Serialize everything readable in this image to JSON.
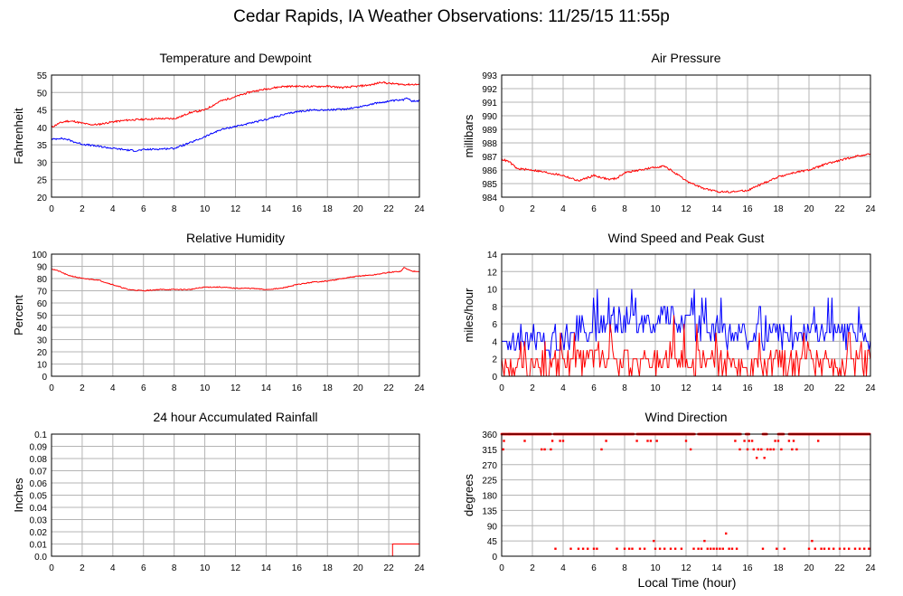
{
  "page": {
    "title": "Cedar Rapids, IA Weather Observations: 11/25/15 11:55p",
    "x_caption": "Local Time (hour)"
  },
  "colors": {
    "red": "#ff0000",
    "blue": "#0000ff",
    "grid": "#b4b4b4",
    "frame": "#000000"
  },
  "chart_data": [
    {
      "id": "temp",
      "type": "line",
      "title": "Temperature and Dewpoint",
      "ylabel": "Fahrenheit",
      "xlim": [
        0,
        24
      ],
      "ylim": [
        20,
        55
      ],
      "xticks": [
        0,
        2,
        4,
        6,
        8,
        10,
        12,
        14,
        16,
        18,
        20,
        22,
        24
      ],
      "yticks": [
        20,
        25,
        30,
        35,
        40,
        45,
        50,
        55
      ],
      "grid": true,
      "series": [
        {
          "color": "red",
          "noise": 0.25,
          "x": [
            0,
            0.5,
            1,
            1.5,
            2,
            2.5,
            3,
            4,
            5,
            6,
            7,
            8,
            8.5,
            9,
            10,
            11,
            12,
            13,
            14,
            15,
            16,
            17,
            18,
            19,
            20,
            21,
            21.5,
            22,
            23,
            24
          ],
          "y": [
            40,
            41.2,
            41.8,
            41.7,
            41.2,
            40.8,
            40.8,
            41.6,
            42.1,
            42.3,
            42.5,
            42.5,
            43.2,
            44.2,
            45,
            47.5,
            48.8,
            50.2,
            51,
            51.7,
            51.8,
            51.7,
            51.8,
            51.4,
            51.8,
            52.3,
            53,
            52.6,
            52.3,
            52.3
          ]
        },
        {
          "color": "blue",
          "noise": 0.25,
          "x": [
            0,
            0.5,
            1,
            1.5,
            2,
            3,
            4,
            5,
            5.5,
            6,
            7,
            8,
            9,
            10,
            11,
            12,
            13,
            14,
            15,
            16,
            17,
            18,
            19,
            20,
            21,
            22,
            23,
            23.2,
            23.5,
            24
          ],
          "y": [
            36.5,
            36.9,
            36.6,
            35.8,
            35.2,
            34.6,
            34,
            33.5,
            33.3,
            33.6,
            33.8,
            34,
            35.5,
            37.3,
            39.3,
            40.3,
            41.2,
            42.3,
            43.5,
            44.5,
            45,
            45,
            45.2,
            45.8,
            46.8,
            47.5,
            47.9,
            48.6,
            47.6,
            47.6
          ]
        }
      ]
    },
    {
      "id": "pres",
      "type": "line",
      "title": "Air Pressure",
      "ylabel": "millibars",
      "xlim": [
        0,
        24
      ],
      "ylim": [
        984,
        993
      ],
      "xticks": [
        0,
        2,
        4,
        6,
        8,
        10,
        12,
        14,
        16,
        18,
        20,
        22,
        24
      ],
      "yticks": [
        984,
        985,
        986,
        987,
        988,
        989,
        990,
        991,
        992,
        993
      ],
      "grid": true,
      "series": [
        {
          "color": "red",
          "noise": 0.07,
          "x": [
            0,
            0.5,
            1,
            2,
            3,
            4,
            4.5,
            5,
            6,
            7,
            7.5,
            8,
            9,
            10,
            10.5,
            11,
            12,
            13,
            14,
            15,
            16,
            17,
            18,
            19,
            20,
            21,
            22,
            23,
            24
          ],
          "y": [
            986.8,
            986.6,
            986.1,
            986,
            985.8,
            985.6,
            985.4,
            985.2,
            985.6,
            985.3,
            985.4,
            985.8,
            986,
            986.2,
            986.3,
            986,
            985.2,
            984.7,
            984.4,
            984.4,
            984.5,
            985,
            985.5,
            985.8,
            986,
            986.4,
            986.7,
            987,
            987.2
          ]
        }
      ]
    },
    {
      "id": "rh",
      "type": "line",
      "title": "Relative Humidity",
      "ylabel": "Percent",
      "xlim": [
        0,
        24
      ],
      "ylim": [
        0,
        100
      ],
      "xticks": [
        0,
        2,
        4,
        6,
        8,
        10,
        12,
        14,
        16,
        18,
        20,
        22,
        24
      ],
      "yticks": [
        0,
        10,
        20,
        30,
        40,
        50,
        60,
        70,
        80,
        90,
        100
      ],
      "grid": true,
      "series": [
        {
          "color": "red",
          "noise": 0.4,
          "x": [
            0,
            0.5,
            1,
            2,
            3,
            4,
            5,
            6,
            7,
            8,
            9,
            10,
            11,
            12,
            13,
            14,
            15,
            16,
            17,
            18,
            19,
            20,
            21,
            22,
            22.8,
            23,
            23.5,
            24
          ],
          "y": [
            88,
            86,
            83,
            80,
            79,
            75,
            71,
            70,
            71,
            71,
            71,
            73,
            73,
            72,
            72,
            71,
            72,
            75,
            77,
            78,
            80,
            82,
            83,
            85,
            86,
            89,
            86,
            86
          ]
        }
      ]
    },
    {
      "id": "wind",
      "type": "line",
      "title": "Wind Speed and Peak Gust",
      "ylabel": "miles/hour",
      "xlim": [
        0,
        24
      ],
      "ylim": [
        0,
        14
      ],
      "xticks": [
        0,
        2,
        4,
        6,
        8,
        10,
        12,
        14,
        16,
        18,
        20,
        22,
        24
      ],
      "yticks": [
        0,
        2,
        4,
        6,
        8,
        10,
        12,
        14
      ],
      "grid": true,
      "series": [
        {
          "color": "blue",
          "gusty": true,
          "levels": [
            3,
            4,
            5,
            6
          ],
          "x": [
            0,
            1,
            2,
            3,
            4,
            4.5,
            5,
            6,
            7,
            8,
            9,
            10,
            10.5,
            11,
            12,
            13,
            14,
            15,
            16,
            17,
            18,
            19,
            20,
            21,
            22,
            23,
            24
          ],
          "y": [
            3.5,
            4,
            4.5,
            4,
            4,
            5,
            5.5,
            5.5,
            6,
            6,
            6,
            6,
            7,
            6.5,
            6,
            6,
            5,
            5,
            4.5,
            4.5,
            5,
            4.5,
            5,
            5,
            5,
            5,
            4.5
          ]
        },
        {
          "color": "red",
          "gusty": true,
          "levels": [
            0,
            1,
            2,
            3
          ],
          "x": [
            0,
            1,
            2,
            3,
            4,
            5,
            6,
            7,
            8,
            9,
            10,
            11,
            12,
            13,
            14,
            15,
            16,
            16.5,
            17,
            18,
            19,
            20,
            21,
            22,
            23,
            24
          ],
          "y": [
            1,
            1,
            1.2,
            1.2,
            1.5,
            1.6,
            1.8,
            1.8,
            1.8,
            1.8,
            1.8,
            2,
            2,
            1.8,
            1.6,
            1.5,
            0.8,
            0.5,
            1.2,
            1.5,
            1.4,
            1.5,
            1.5,
            1.5,
            1.6,
            1.6
          ]
        }
      ]
    },
    {
      "id": "rain",
      "type": "line",
      "title": "24 hour Accumulated Rainfall",
      "ylabel": "Inches",
      "xlim": [
        0,
        24
      ],
      "ylim": [
        0,
        0.1
      ],
      "xticks": [
        0,
        2,
        4,
        6,
        8,
        10,
        12,
        14,
        16,
        18,
        20,
        22,
        24
      ],
      "yticks": [
        0.0,
        0.01,
        0.02,
        0.03,
        0.04,
        0.05,
        0.06,
        0.07,
        0.08,
        0.09,
        0.1
      ],
      "ytick_labels": [
        "0.0",
        "0.01",
        "0.02",
        "0.03",
        "0.04",
        "0.05",
        "0.06",
        "0.07",
        "0.08",
        "0.09",
        "0.1"
      ],
      "grid": true,
      "series": [
        {
          "color": "red",
          "step": true,
          "x": [
            0,
            22.25,
            22.25,
            24
          ],
          "y": [
            0,
            0,
            0.01,
            0.01
          ]
        }
      ]
    },
    {
      "id": "wdir",
      "type": "scatter",
      "title": "Wind Direction",
      "ylabel": "degrees",
      "xlim": [
        0,
        24
      ],
      "ylim": [
        0,
        360
      ],
      "xticks": [
        0,
        2,
        4,
        6,
        8,
        10,
        12,
        14,
        16,
        18,
        20,
        22,
        24
      ],
      "yticks": [
        0,
        45,
        90,
        135,
        180,
        225,
        270,
        315,
        360
      ],
      "grid": true,
      "series": [
        {
          "color": "red",
          "marker": "square",
          "points": [
            [
              0.1,
              315
            ],
            [
              0.15,
              340
            ],
            [
              0.5,
              360
            ],
            [
              1.5,
              340
            ],
            [
              2.6,
              315
            ],
            [
              2.8,
              315
            ],
            [
              3.2,
              315
            ],
            [
              3.3,
              340
            ],
            [
              3.5,
              22
            ],
            [
              3.8,
              340
            ],
            [
              4.0,
              340
            ],
            [
              4.5,
              22
            ],
            [
              5,
              22
            ],
            [
              5.3,
              22
            ],
            [
              5.6,
              22
            ],
            [
              6,
              22
            ],
            [
              6.2,
              22
            ],
            [
              6.5,
              315
            ],
            [
              6.8,
              340
            ],
            [
              7.5,
              22
            ],
            [
              8,
              22
            ],
            [
              8.3,
              22
            ],
            [
              8.5,
              22
            ],
            [
              8.8,
              340
            ],
            [
              9,
              22
            ],
            [
              9.3,
              22
            ],
            [
              9.5,
              340
            ],
            [
              9.7,
              340
            ],
            [
              9.9,
              45
            ],
            [
              10,
              22
            ],
            [
              10.1,
              340
            ],
            [
              10.3,
              22
            ],
            [
              10.6,
              22
            ],
            [
              11,
              22
            ],
            [
              11.3,
              22
            ],
            [
              11.7,
              22
            ],
            [
              12,
              340
            ],
            [
              12.3,
              315
            ],
            [
              12.5,
              22
            ],
            [
              12.8,
              22
            ],
            [
              13,
              22
            ],
            [
              13.2,
              45
            ],
            [
              13.4,
              22
            ],
            [
              13.6,
              22
            ],
            [
              13.8,
              22
            ],
            [
              14,
              22
            ],
            [
              14.2,
              22
            ],
            [
              14.4,
              22
            ],
            [
              14.6,
              67
            ],
            [
              14.8,
              22
            ],
            [
              15,
              22
            ],
            [
              15.2,
              340
            ],
            [
              15.3,
              22
            ],
            [
              15.5,
              315
            ],
            [
              15.8,
              340
            ],
            [
              16,
              315
            ],
            [
              16.1,
              340
            ],
            [
              16.3,
              340
            ],
            [
              16.4,
              315
            ],
            [
              16.6,
              290
            ],
            [
              16.7,
              315
            ],
            [
              16.9,
              315
            ],
            [
              17,
              22
            ],
            [
              17.1,
              290
            ],
            [
              17.3,
              315
            ],
            [
              17.5,
              315
            ],
            [
              17.7,
              315
            ],
            [
              17.8,
              340
            ],
            [
              17.9,
              22
            ],
            [
              18,
              340
            ],
            [
              18.2,
              315
            ],
            [
              18.4,
              22
            ],
            [
              18.7,
              340
            ],
            [
              18.9,
              315
            ],
            [
              19,
              340
            ],
            [
              19.2,
              315
            ],
            [
              20,
              22
            ],
            [
              20.2,
              45
            ],
            [
              20.4,
              22
            ],
            [
              20.6,
              340
            ],
            [
              20.8,
              22
            ],
            [
              21,
              22
            ],
            [
              21.3,
              22
            ],
            [
              21.6,
              22
            ],
            [
              22,
              22
            ],
            [
              22.3,
              22
            ],
            [
              22.6,
              22
            ],
            [
              23,
              22
            ],
            [
              23.3,
              22
            ],
            [
              23.6,
              22
            ],
            [
              23.9,
              22
            ]
          ],
          "top_band_ranges": [
            [
              0,
              3.2
            ],
            [
              3.4,
              8.6
            ],
            [
              8.8,
              12.6
            ],
            [
              12.8,
              15.6
            ],
            [
              15.9,
              16.1
            ],
            [
              17.0,
              17.3
            ],
            [
              18.0,
              18.4
            ],
            [
              18.7,
              24
            ]
          ]
        }
      ]
    }
  ]
}
